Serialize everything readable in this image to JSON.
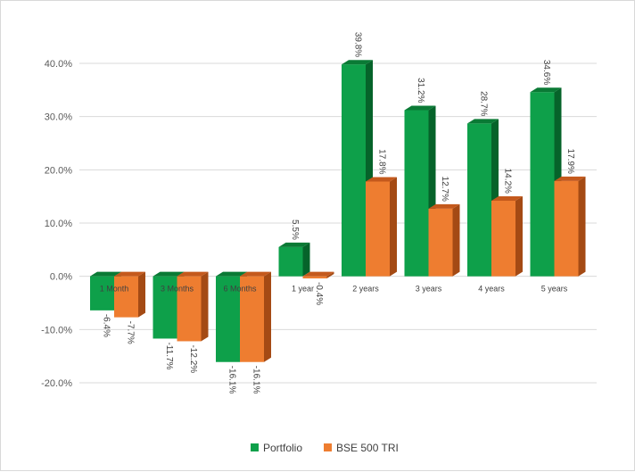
{
  "chart_data": {
    "type": "bar",
    "categories": [
      "1 Month",
      "3 Months",
      "6 Months",
      "1 year",
      "2 years",
      "3 years",
      "4 years",
      "5 years"
    ],
    "series": [
      {
        "name": "Portfolio",
        "values": [
          -6.4,
          -11.7,
          -16.1,
          5.5,
          39.8,
          31.2,
          28.7,
          34.6
        ],
        "labels": [
          "-6.4%",
          "-11.7%",
          "-16.1%",
          "5.5%",
          "39.8%",
          "31.2%",
          "28.7%",
          "34.6%"
        ],
        "color": "#0ea04a",
        "top_color": "#0a7a35",
        "side_color": "#06632a"
      },
      {
        "name": "BSE 500 TRI",
        "values": [
          -7.7,
          -12.2,
          -16.1,
          -0.4,
          17.8,
          12.7,
          14.2,
          17.9
        ],
        "labels": [
          "-7.7%",
          "-12.2%",
          "-16.1%",
          "-0.4%",
          "17.8%",
          "12.7%",
          "14.2%",
          "17.9%"
        ],
        "color": "#ee7d30",
        "top_color": "#c4591c",
        "side_color": "#a44a14"
      }
    ],
    "ylim": [
      -20,
      40
    ],
    "yticks": [
      40,
      30,
      20,
      10,
      0,
      -10,
      -20
    ],
    "ytick_labels": [
      "40.0%",
      "30.0%",
      "20.0%",
      "10.0%",
      "0.0%",
      "-10.0%",
      "-20.0%"
    ],
    "grid": true,
    "legend_position": "bottom",
    "title": "",
    "xlabel": "",
    "ylabel": ""
  }
}
